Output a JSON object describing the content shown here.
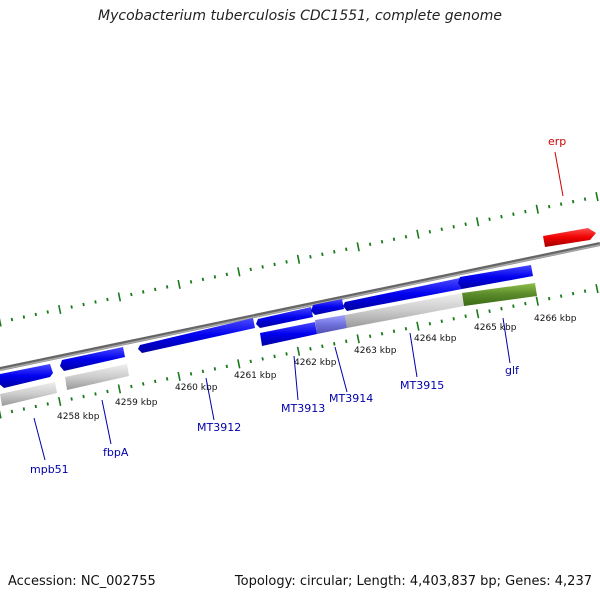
{
  "title": "Mycobacterium tuberculosis CDC1551, complete genome",
  "footer": {
    "accession": "Accession: NC_002755",
    "stats": "Topology: circular; Length: 4,403,837 bp; Genes: 4,237"
  },
  "scale_labels": [
    "4258 kbp",
    "4259 kbp",
    "4260 kbp",
    "4261 kbp",
    "4262 kbp",
    "4263 kbp",
    "4264 kbp",
    "4265 kbp",
    "4266 kbp"
  ],
  "genes": [
    {
      "name": "mpb51",
      "color": "#0000cc"
    },
    {
      "name": "fbpA",
      "color": "#0000cc"
    },
    {
      "name": "MT3912",
      "color": "#0000cc"
    },
    {
      "name": "MT3913",
      "color": "#0000cc"
    },
    {
      "name": "MT3914",
      "color": "#0000cc"
    },
    {
      "name": "MT3915",
      "color": "#0000cc"
    },
    {
      "name": "glf",
      "color": "#0000cc"
    },
    {
      "name": "erp",
      "color": "#cc0000"
    }
  ],
  "colors": {
    "gene_blue": "#0000ee",
    "gene_red": "#ee0000",
    "gene_green": "#5a8a2a",
    "gene_grey": "#c8c8c8",
    "backbone": "#888888",
    "ticks": "#1a7a1a"
  }
}
